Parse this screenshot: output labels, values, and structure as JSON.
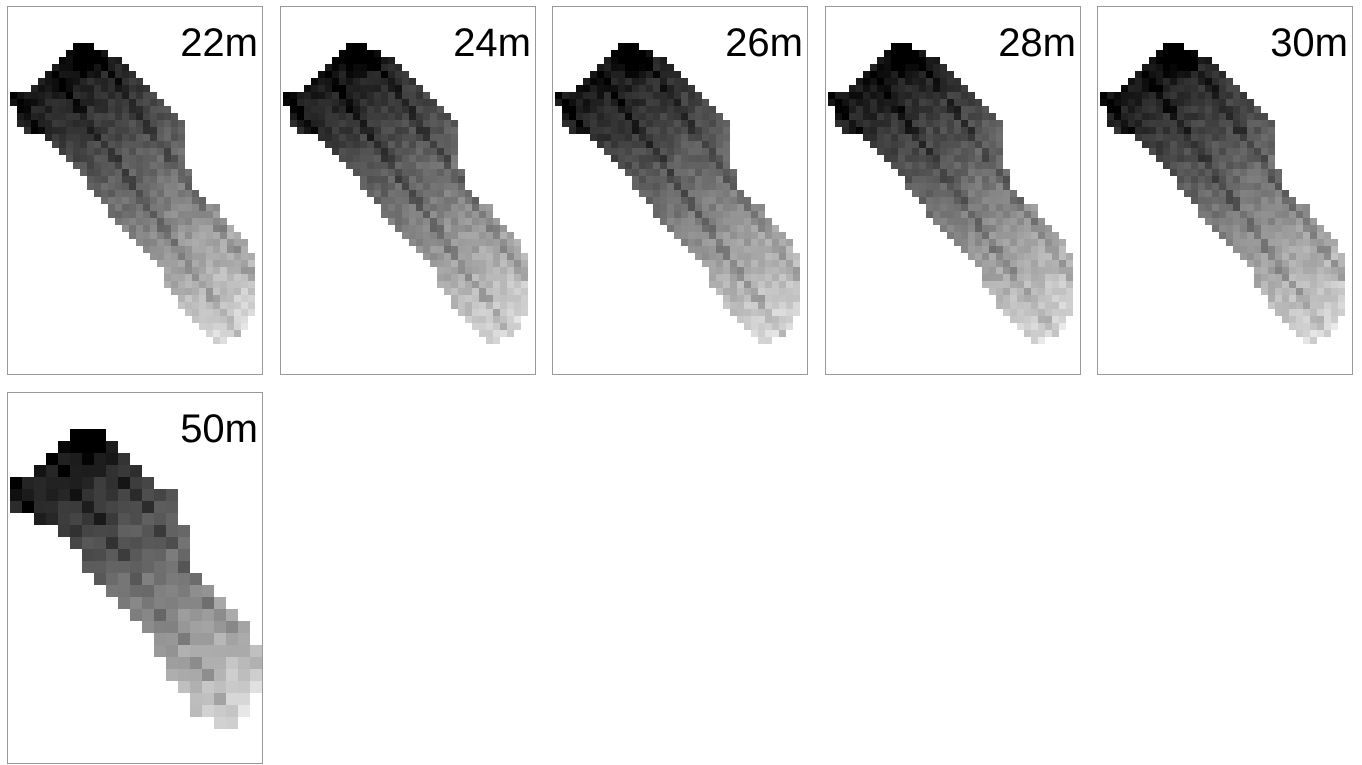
{
  "panels": [
    {
      "label": "22m"
    },
    {
      "label": "24m"
    },
    {
      "label": "26m"
    },
    {
      "label": "28m"
    },
    {
      "label": "30m"
    },
    {
      "label": "50m"
    }
  ]
}
